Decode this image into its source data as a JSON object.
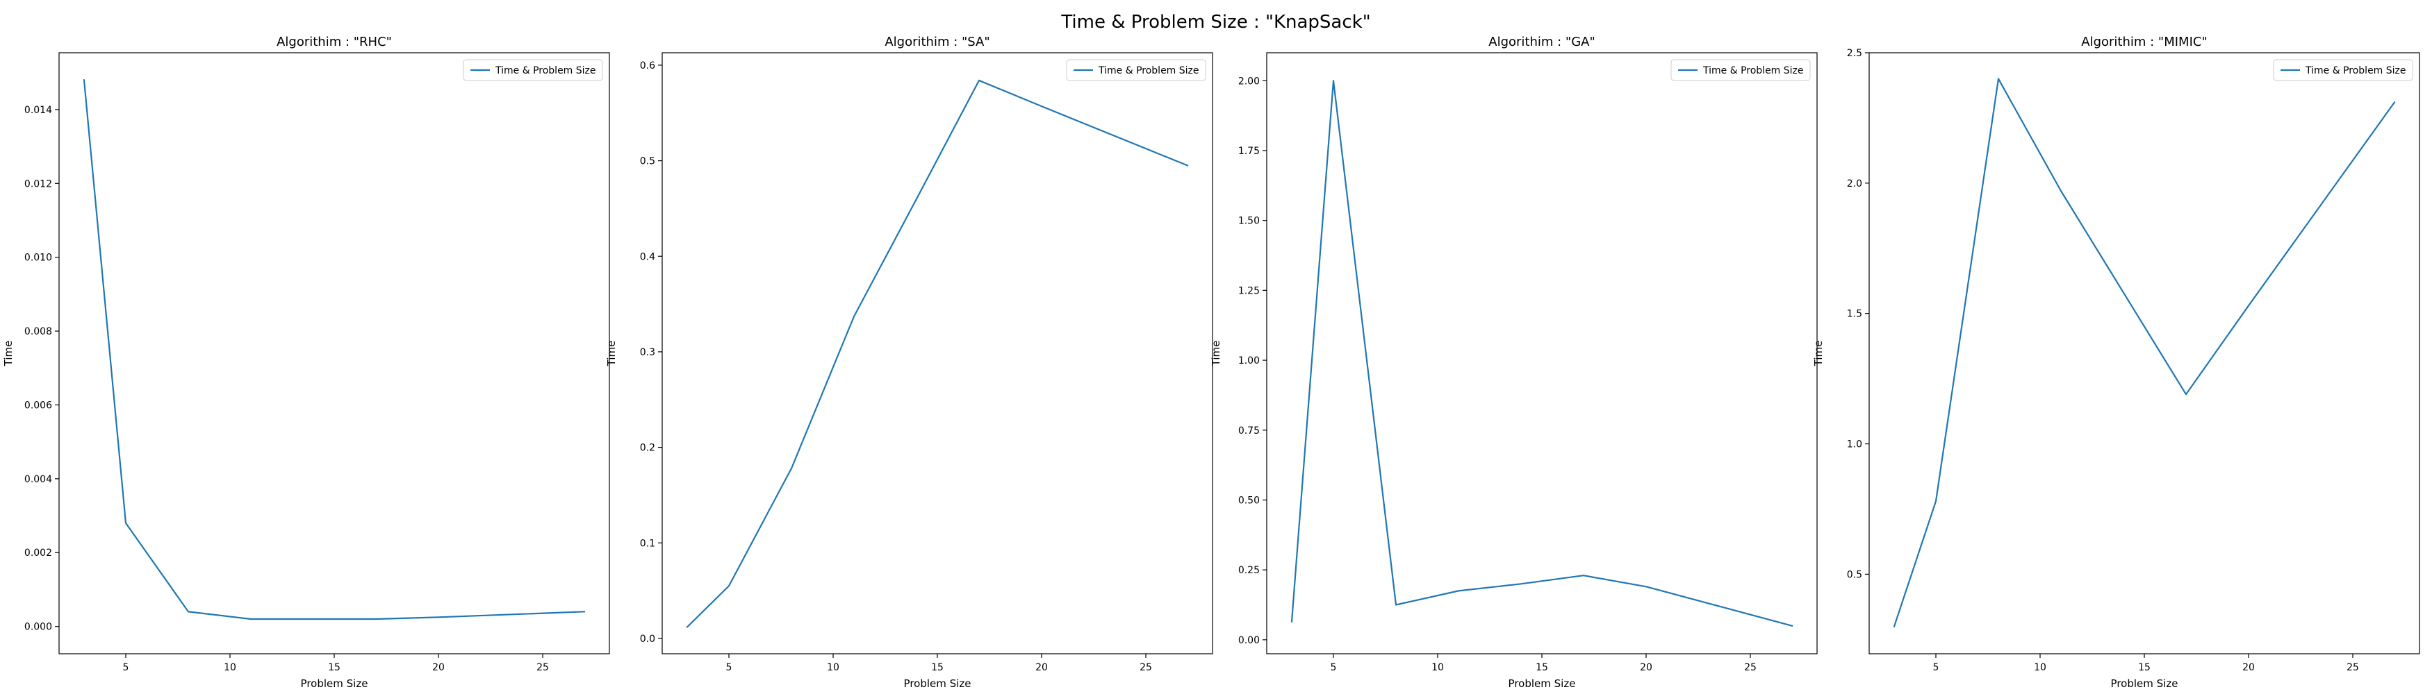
{
  "figure": {
    "suptitle": "Time & Problem Size : \"KnapSack\""
  },
  "colors": {
    "series": "#1f77b4",
    "axes": "#000000",
    "legend_border": "#cccccc"
  },
  "chart_data": [
    {
      "type": "line",
      "title": "Algorithim : \"RHC\"",
      "xlabel": "Problem Size",
      "ylabel": "Time",
      "xlim": [
        1.8,
        28.2
      ],
      "ylim": [
        -0.00074,
        0.01554
      ],
      "xticks": [
        5,
        10,
        15,
        20,
        25
      ],
      "yticks": [
        0.0,
        0.002,
        0.004,
        0.006,
        0.008,
        0.01,
        0.012,
        0.014
      ],
      "ytick_labels": [
        "0.000",
        "0.002",
        "0.004",
        "0.006",
        "0.008",
        "0.010",
        "0.012",
        "0.014"
      ],
      "legend_position": "top-right",
      "grid": false,
      "series": [
        {
          "name": "Time & Problem Size",
          "x": [
            3,
            5,
            8,
            11,
            14,
            17,
            20,
            27
          ],
          "y": [
            0.0148,
            0.0028,
            0.0004,
            0.0002,
            0.0002,
            0.0002,
            0.00025,
            0.0004
          ]
        }
      ]
    },
    {
      "type": "line",
      "title": "Algorithim : \"SA\"",
      "xlabel": "Problem Size",
      "ylabel": "Time",
      "xlim": [
        1.8,
        28.2
      ],
      "ylim": [
        -0.016,
        0.613
      ],
      "xticks": [
        5,
        10,
        15,
        20,
        25
      ],
      "yticks": [
        0.0,
        0.1,
        0.2,
        0.3,
        0.4,
        0.5,
        0.6
      ],
      "ytick_labels": [
        "0.0",
        "0.1",
        "0.2",
        "0.3",
        "0.4",
        "0.5",
        "0.6"
      ],
      "legend_position": "top-right",
      "grid": false,
      "series": [
        {
          "name": "Time & Problem Size",
          "x": [
            3,
            5,
            8,
            11,
            14,
            17,
            20,
            27
          ],
          "y": [
            0.012,
            0.055,
            0.178,
            0.337,
            0.46,
            0.584,
            0.557,
            0.495
          ]
        }
      ]
    },
    {
      "type": "line",
      "title": "Algorithim : \"GA\"",
      "xlabel": "Problem Size",
      "ylabel": "Time",
      "xlim": [
        1.8,
        28.2
      ],
      "ylim": [
        -0.05,
        2.1
      ],
      "xticks": [
        5,
        10,
        15,
        20,
        25
      ],
      "yticks": [
        0.0,
        0.25,
        0.5,
        0.75,
        1.0,
        1.25,
        1.5,
        1.75,
        2.0
      ],
      "ytick_labels": [
        "0.00",
        "0.25",
        "0.50",
        "0.75",
        "1.00",
        "1.25",
        "1.50",
        "1.75",
        "2.00"
      ],
      "legend_position": "top-right",
      "grid": false,
      "series": [
        {
          "name": "Time & Problem Size",
          "x": [
            3,
            5,
            8,
            11,
            14,
            17,
            20,
            27
          ],
          "y": [
            0.065,
            2.0,
            0.125,
            0.175,
            0.2,
            0.23,
            0.19,
            0.05
          ]
        }
      ]
    },
    {
      "type": "line",
      "title": "Algorithim : \"MIMIC\"",
      "xlabel": "Problem Size",
      "ylabel": "Time",
      "xlim": [
        1.8,
        28.2
      ],
      "ylim": [
        0.195,
        2.5
      ],
      "xticks": [
        5,
        10,
        15,
        20,
        25
      ],
      "yticks": [
        0.5,
        1.0,
        1.5,
        2.0,
        2.5
      ],
      "ytick_labels": [
        "0.5",
        "1.0",
        "1.5",
        "2.0",
        "2.5"
      ],
      "legend_position": "top-right",
      "grid": false,
      "series": [
        {
          "name": "Time & Problem Size",
          "x": [
            3,
            5,
            8,
            11,
            14,
            17,
            20,
            27
          ],
          "y": [
            0.3,
            0.78,
            2.4,
            1.97,
            1.58,
            1.19,
            1.53,
            2.31
          ]
        }
      ]
    }
  ]
}
